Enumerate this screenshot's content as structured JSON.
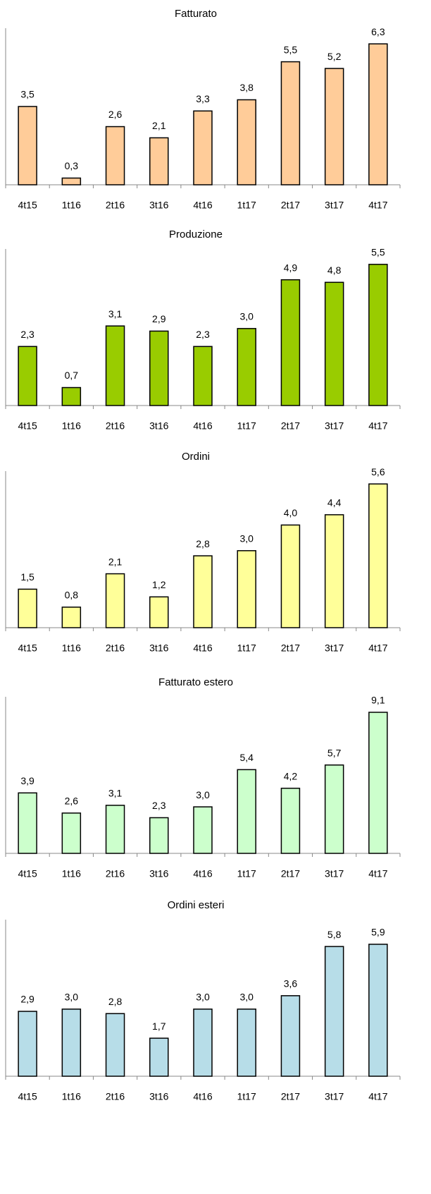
{
  "chart_data": [
    {
      "type": "bar",
      "title": "Fatturato",
      "categories": [
        "4t15",
        "1t16",
        "2t16",
        "3t16",
        "4t16",
        "1t17",
        "2t17",
        "3t17",
        "4t17"
      ],
      "values": [
        3.5,
        0.3,
        2.6,
        2.1,
        3.3,
        3.8,
        5.5,
        5.2,
        6.3
      ],
      "value_labels": [
        "3,5",
        "0,3",
        "2,6",
        "2,1",
        "3,3",
        "3,8",
        "5,5",
        "5,2",
        "6,3"
      ],
      "color": "#ffcc99",
      "ylim": [
        0,
        7
      ]
    },
    {
      "type": "bar",
      "title": "Produzione",
      "categories": [
        "4t15",
        "1t16",
        "2t16",
        "3t16",
        "4t16",
        "1t17",
        "2t17",
        "3t17",
        "4t17"
      ],
      "values": [
        2.3,
        0.7,
        3.1,
        2.9,
        2.3,
        3.0,
        4.9,
        4.8,
        5.5
      ],
      "value_labels": [
        "2,3",
        "0,7",
        "3,1",
        "2,9",
        "2,3",
        "3,0",
        "4,9",
        "4,8",
        "5,5"
      ],
      "color": "#99cc00",
      "ylim": [
        0,
        6.1
      ]
    },
    {
      "type": "bar",
      "title": "Ordini",
      "categories": [
        "4t15",
        "1t16",
        "2t16",
        "3t16",
        "4t16",
        "1t17",
        "2t17",
        "3t17",
        "4t17"
      ],
      "values": [
        1.5,
        0.8,
        2.1,
        1.2,
        2.8,
        3.0,
        4.0,
        4.4,
        5.6
      ],
      "value_labels": [
        "1,5",
        "0,8",
        "2,1",
        "1,2",
        "2,8",
        "3,0",
        "4,0",
        "4,4",
        "5,6"
      ],
      "color": "#ffff99",
      "ylim": [
        0,
        6.1
      ]
    },
    {
      "type": "bar",
      "title": "Fatturato estero",
      "categories": [
        "4t15",
        "1t16",
        "2t16",
        "3t16",
        "4t16",
        "1t17",
        "2t17",
        "3t17",
        "4t17"
      ],
      "values": [
        3.9,
        2.6,
        3.1,
        2.3,
        3.0,
        5.4,
        4.2,
        5.7,
        9.1
      ],
      "value_labels": [
        "3,9",
        "2,6",
        "3,1",
        "2,3",
        "3,0",
        "5,4",
        "4,2",
        "5,7",
        "9,1"
      ],
      "color": "#ccffcc",
      "ylim": [
        0,
        10.1
      ]
    },
    {
      "type": "bar",
      "title": "Ordini esteri",
      "categories": [
        "4t15",
        "1t16",
        "2t16",
        "3t16",
        "4t16",
        "1t17",
        "2t17",
        "3t17",
        "4t17"
      ],
      "values": [
        2.9,
        3.0,
        2.8,
        1.7,
        3.0,
        3.0,
        3.6,
        5.8,
        5.9
      ],
      "value_labels": [
        "2,9",
        "3,0",
        "2,8",
        "1,7",
        "3,0",
        "3,0",
        "3,6",
        "5,8",
        "5,9"
      ],
      "color": "#b7dde8",
      "ylim": [
        0,
        7
      ]
    }
  ]
}
